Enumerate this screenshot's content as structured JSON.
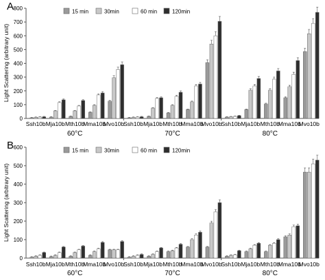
{
  "colors": {
    "15 min": "#9a9a9a",
    "30min": "#c8c8c8",
    "60 min": "#ffffff",
    "120min": "#2e2e2e",
    "axis": "#555555",
    "error_bar": "#555555"
  },
  "chart_data": [
    {
      "type": "bar",
      "panel_label": "A",
      "ylabel": "Light Scattering (arbitrary unit)",
      "ylim": [
        0,
        800
      ],
      "yticks": [
        0,
        100,
        200,
        300,
        400,
        500,
        600,
        700,
        800
      ],
      "legend_position": "top-left",
      "groups": [
        "60°C",
        "70°C",
        "80°C"
      ],
      "categories": [
        "Ssh10b",
        "Mja10b",
        "Mth10b",
        "Mma10b",
        "Mvo10b",
        "Ssh10b",
        "Mja10b",
        "Mth10b",
        "Mma10b",
        "Mvo10b",
        "Ssh10b",
        "Mja10b",
        "Mth10b",
        "Mma10b",
        "Mvo10b"
      ],
      "series": [
        {
          "name": "15 min",
          "values": [
            5,
            10,
            15,
            45,
            125,
            5,
            15,
            40,
            65,
            405,
            10,
            65,
            105,
            150,
            485
          ]
        },
        {
          "name": "30min",
          "values": [
            8,
            55,
            55,
            95,
            295,
            8,
            75,
            95,
            120,
            540,
            12,
            205,
            205,
            230,
            615
          ]
        },
        {
          "name": "60 min",
          "values": [
            10,
            115,
            90,
            170,
            355,
            10,
            145,
            160,
            235,
            600,
            15,
            235,
            285,
            320,
            690
          ]
        },
        {
          "name": "120min",
          "values": [
            12,
            135,
            130,
            185,
            390,
            12,
            150,
            190,
            250,
            705,
            20,
            290,
            345,
            420,
            770
          ]
        }
      ]
    },
    {
      "type": "bar",
      "panel_label": "B",
      "ylabel": "Light Scattering (arbitrary unit)",
      "ylim": [
        0,
        600
      ],
      "yticks": [
        0,
        100,
        200,
        300,
        400,
        500,
        600
      ],
      "legend_position": "top-left",
      "groups": [
        "60°C",
        "70°C",
        "80°C"
      ],
      "categories": [
        "Ssh10b",
        "Mja10b",
        "Mth10b",
        "Mma10b",
        "Mvo10b",
        "Ssh10b",
        "Mja10b",
        "Mth10b",
        "Mma10b",
        "Mvo10b",
        "Ssh10b",
        "Mja10b",
        "Mth10b",
        "Mma10b",
        "Mvo10b"
      ],
      "series": [
        {
          "name": "15 min",
          "values": [
            5,
            8,
            10,
            15,
            45,
            5,
            10,
            35,
            60,
            60,
            10,
            35,
            35,
            115,
            465
          ]
        },
        {
          "name": "30min",
          "values": [
            10,
            15,
            30,
            35,
            45,
            10,
            20,
            40,
            100,
            190,
            15,
            50,
            70,
            125,
            465
          ]
        },
        {
          "name": "60 min",
          "values": [
            15,
            30,
            45,
            50,
            45,
            15,
            35,
            55,
            125,
            250,
            18,
            70,
            80,
            170,
            510
          ]
        },
        {
          "name": "120min",
          "values": [
            30,
            60,
            65,
            85,
            90,
            20,
            55,
            75,
            140,
            300,
            40,
            80,
            100,
            175,
            530
          ]
        }
      ]
    }
  ]
}
